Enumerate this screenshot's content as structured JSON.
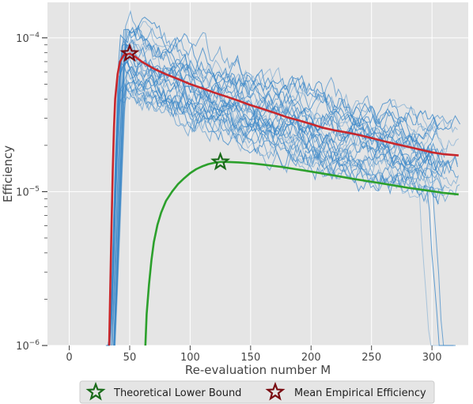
{
  "chart_data": {
    "type": "line",
    "title": "",
    "xlabel": "Re-evaluation number M",
    "ylabel": "Efficiency",
    "xlim": [
      -18,
      330
    ],
    "ylim": [
      1e-06,
      0.00017
    ],
    "yscale": "log",
    "grid": true,
    "background": "#e5e5e5",
    "legend_position": "bottom-center, outside plot",
    "x_ticks": [
      0,
      50,
      100,
      150,
      200,
      250,
      300
    ],
    "x_tick_labels": [
      "0",
      "50",
      "100",
      "150",
      "200",
      "250",
      "300"
    ],
    "y_ticks": [
      1e-06,
      1e-05,
      0.0001
    ],
    "y_tick_labels": [
      "10",
      "10",
      "10"
    ],
    "y_tick_exponents": [
      "−6",
      "−5",
      "−4"
    ],
    "series": [
      {
        "name": "Theoretical Lower Bound",
        "color": "#2ca02c",
        "x": [
          63,
          64,
          66,
          68,
          70,
          73,
          76,
          80,
          85,
          90,
          95,
          100,
          105,
          110,
          115,
          120,
          125,
          130,
          140,
          150,
          160,
          175,
          190,
          205,
          220,
          235,
          250,
          265,
          280,
          295,
          310,
          322
        ],
        "y": [
          1e-06,
          1.6e-06,
          2.5e-06,
          3.6e-06,
          4.7e-06,
          6.1e-06,
          7.3e-06,
          8.7e-06,
          1e-05,
          1.12e-05,
          1.22e-05,
          1.32e-05,
          1.4e-05,
          1.46e-05,
          1.51e-05,
          1.54e-05,
          1.56e-05,
          1.56e-05,
          1.55e-05,
          1.53e-05,
          1.5e-05,
          1.45e-05,
          1.39e-05,
          1.33e-05,
          1.27e-05,
          1.21e-05,
          1.16e-05,
          1.11e-05,
          1.06e-05,
          1.02e-05,
          9.8e-06,
          9.6e-06
        ],
        "marker": {
          "type": "star",
          "x": 125,
          "y": 1.56e-05
        }
      },
      {
        "name": "Mean Empirical Efficiency",
        "color": "#c8272c",
        "x": [
          33,
          34,
          35,
          36,
          37,
          38,
          40,
          42,
          45,
          50,
          55,
          60,
          70,
          80,
          90,
          100,
          110,
          120,
          130,
          140,
          150,
          160,
          170,
          180,
          190,
          200,
          210,
          220,
          230,
          240,
          250,
          260,
          270,
          280,
          290,
          300,
          310,
          322
        ],
        "y": [
          1e-06,
          2.5e-06,
          6e-06,
          1.4e-05,
          2.6e-05,
          4e-05,
          5.8e-05,
          7e-05,
          7.7e-05,
          7.9e-05,
          7.5e-05,
          7e-05,
          6.3e-05,
          5.8e-05,
          5.4e-05,
          5e-05,
          4.7e-05,
          4.4e-05,
          4.15e-05,
          3.9e-05,
          3.65e-05,
          3.45e-05,
          3.25e-05,
          3.05e-05,
          2.9e-05,
          2.75e-05,
          2.6e-05,
          2.5e-05,
          2.42e-05,
          2.33e-05,
          2.23e-05,
          2.13e-05,
          2.04e-05,
          1.96e-05,
          1.88e-05,
          1.8e-05,
          1.75e-05,
          1.72e-05
        ],
        "marker": {
          "type": "star",
          "x": 50,
          "y": 7.9e-05
        }
      }
    ],
    "background_traces": {
      "description_color": "#3a87c8",
      "count": 30
    }
  }
}
